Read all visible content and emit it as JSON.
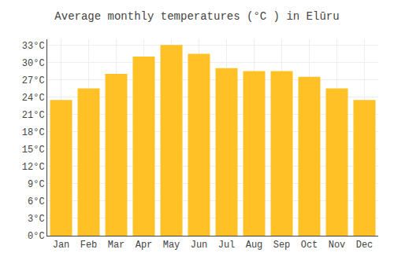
{
  "chart_data": {
    "type": "bar",
    "title": "Average monthly temperatures (°C ) in Elūru",
    "categories": [
      "Jan",
      "Feb",
      "Mar",
      "Apr",
      "May",
      "Jun",
      "Jul",
      "Aug",
      "Sep",
      "Oct",
      "Nov",
      "Dec"
    ],
    "values": [
      23.5,
      25.5,
      28.0,
      31.0,
      33.0,
      31.5,
      29.0,
      28.5,
      28.5,
      27.5,
      25.5,
      23.5
    ],
    "color": "#FFC125",
    "ylim": [
      0,
      34
    ],
    "yticks": [
      {
        "value": 0,
        "label": "0°C"
      },
      {
        "value": 3,
        "label": "3°C"
      },
      {
        "value": 6,
        "label": "6°C"
      },
      {
        "value": 9,
        "label": "9°C"
      },
      {
        "value": 12,
        "label": "12°C"
      },
      {
        "value": 15,
        "label": "15°C"
      },
      {
        "value": 18,
        "label": "18°C"
      },
      {
        "value": 21,
        "label": "21°C"
      },
      {
        "value": 24,
        "label": "24°C"
      },
      {
        "value": 27,
        "label": "27°C"
      },
      {
        "value": 30,
        "label": "30°C"
      },
      {
        "value": 33,
        "label": "33°C"
      }
    ],
    "grid": true
  }
}
